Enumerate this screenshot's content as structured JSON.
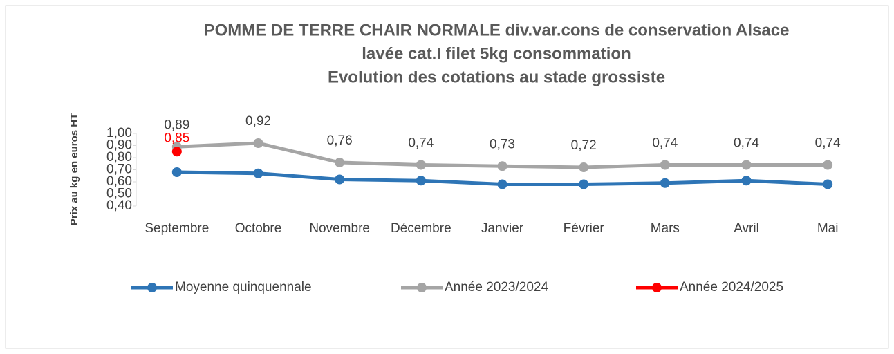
{
  "chart_data": {
    "type": "line",
    "title": [
      "POMME DE TERRE CHAIR NORMALE div.var.cons de conservation Alsace",
      "lavée cat.I filet 5kg consommation",
      "Evolution des cotations au stade grossiste"
    ],
    "y_label": "Prix au kg en euros HT",
    "categories": [
      "Septembre",
      "Octobre",
      "Novembre",
      "Décembre",
      "Janvier",
      "Février",
      "Mars",
      "Avril",
      "Mai"
    ],
    "series": [
      {
        "name": "Moyenne quinquennale",
        "color": "#2e75b6",
        "values": [
          0.68,
          0.67,
          0.62,
          0.61,
          0.58,
          0.58,
          0.59,
          0.61,
          0.58
        ]
      },
      {
        "name": "Année 2023/2024",
        "color": "#a5a5a5",
        "values": [
          0.89,
          0.92,
          0.76,
          0.74,
          0.73,
          0.72,
          0.74,
          0.74,
          0.74
        ],
        "value_labels": [
          "0,89",
          "0,92",
          "0,76",
          "0,74",
          "0,73",
          "0,72",
          "0,74",
          "0,74",
          "0,74"
        ]
      },
      {
        "name": "Année 2024/2025",
        "color": "#ff0000",
        "values": [
          0.85,
          null,
          null,
          null,
          null,
          null,
          null,
          null,
          null
        ],
        "value_labels": [
          "0,85",
          null,
          null,
          null,
          null,
          null,
          null,
          null,
          null
        ]
      }
    ],
    "ylim": [
      0.4,
      1.0
    ],
    "yticks": [
      {
        "value": 0.4,
        "label": "0,40"
      },
      {
        "value": 0.5,
        "label": "0,50"
      },
      {
        "value": 0.6,
        "label": "0,60"
      },
      {
        "value": 0.7,
        "label": "0,70"
      },
      {
        "value": 0.8,
        "label": "0,80"
      },
      {
        "value": 0.9,
        "label": "0,90"
      },
      {
        "value": 1.0,
        "label": "1,00"
      }
    ],
    "grid": false,
    "legend": "bottom"
  }
}
